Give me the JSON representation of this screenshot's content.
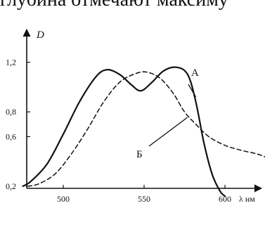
{
  "header_text": "глубина отмечают максиму",
  "chart_data": {
    "type": "line",
    "title": "",
    "xlabel": "λ нм",
    "ylabel": "D",
    "xlim": [
      475,
      640
    ],
    "ylim": [
      0.12,
      1.26
    ],
    "xticks": [
      500,
      550,
      600
    ],
    "xtick_labels": [
      "500",
      "550",
      "600"
    ],
    "yticks": [
      0.2,
      0.6,
      0.8,
      1.2
    ],
    "ytick_labels": [
      "0,2",
      "0,6",
      "0,8",
      "1,2"
    ],
    "grid": false,
    "series": [
      {
        "name": "А",
        "style": "solid",
        "x": [
          475,
          480,
          490,
          500,
          510,
          520,
          527,
          535,
          542,
          548,
          555,
          562,
          570,
          577,
          582,
          587,
          592,
          597,
          600
        ],
        "y": [
          0.2,
          0.24,
          0.38,
          0.62,
          0.88,
          1.08,
          1.14,
          1.1,
          1.02,
          0.97,
          1.04,
          1.13,
          1.16,
          1.1,
          0.88,
          0.55,
          0.3,
          0.16,
          0.12
        ]
      },
      {
        "name": "Б",
        "style": "dashed",
        "x": [
          478,
          485,
          495,
          505,
          515,
          525,
          535,
          545,
          552,
          560,
          568,
          575,
          582,
          590,
          600,
          610,
          620,
          628
        ],
        "y": [
          0.2,
          0.22,
          0.3,
          0.46,
          0.66,
          0.88,
          1.04,
          1.11,
          1.12,
          1.07,
          0.95,
          0.8,
          0.7,
          0.6,
          0.53,
          0.49,
          0.46,
          0.42
        ]
      }
    ]
  }
}
